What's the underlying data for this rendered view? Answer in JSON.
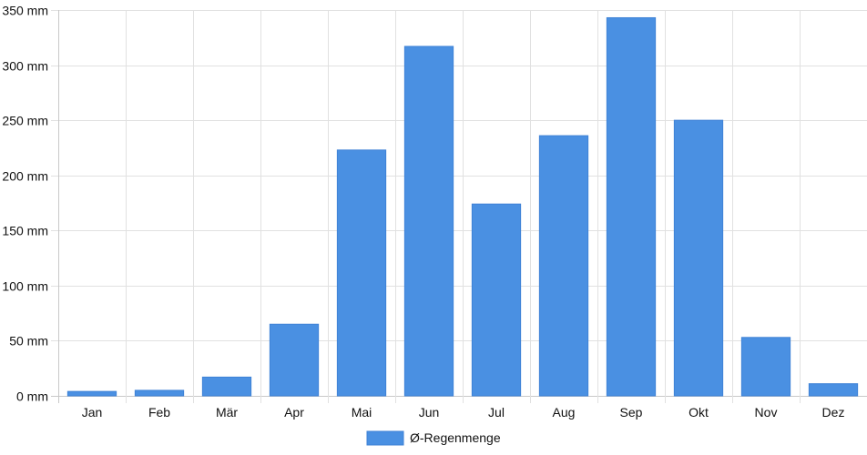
{
  "chart_data": {
    "type": "bar",
    "categories": [
      "Jan",
      "Feb",
      "Mär",
      "Apr",
      "Mai",
      "Jun",
      "Jul",
      "Aug",
      "Sep",
      "Okt",
      "Nov",
      "Dez"
    ],
    "series": [
      {
        "name": "Ø-Regenmenge",
        "values": [
          4,
          5,
          17,
          65,
          223,
          317,
          174,
          236,
          343,
          250,
          53,
          11
        ]
      }
    ],
    "unit": "mm",
    "ylim": [
      0,
      350
    ],
    "yticks": [
      0,
      50,
      100,
      150,
      200,
      250,
      300,
      350
    ],
    "grid": true,
    "legend_position": "bottom",
    "colors": {
      "bar": "#4a90e2",
      "bar_border": "#3f82d6",
      "grid": "#e1e1e1"
    }
  }
}
